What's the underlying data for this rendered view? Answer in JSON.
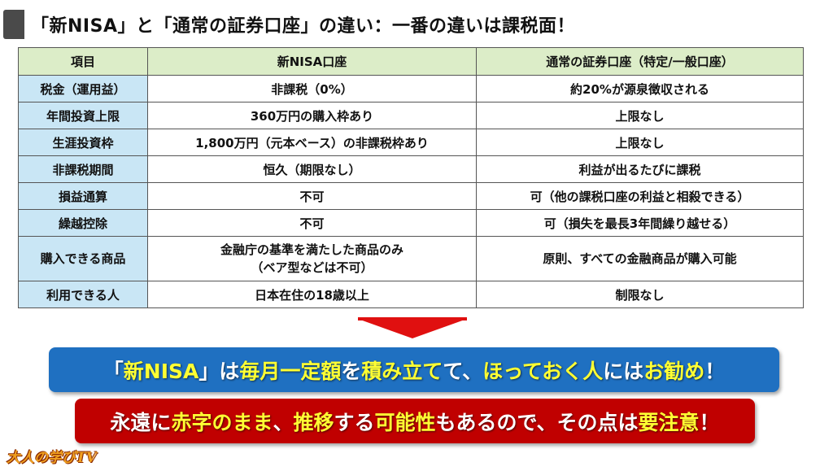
{
  "title": "「新NISA」と「通常の証券口座」の違い：一番の違いは課税面！",
  "table": {
    "headers": [
      "項目",
      "新NISA口座",
      "通常の証券口座（特定/一般口座）"
    ],
    "rows": [
      [
        "税金（運用益）",
        "非課税（0%）",
        "約20%が源泉徴収される"
      ],
      [
        "年間投資上限",
        "360万円の購入枠あり",
        "上限なし"
      ],
      [
        "生涯投資枠",
        "1,800万円（元本ベース）の非課税枠あり",
        "上限なし"
      ],
      [
        "非課税期間",
        "恒久（期限なし）",
        "利益が出るたびに課税"
      ],
      [
        "損益通算",
        "不可",
        "可（他の課税口座の利益と相殺できる）"
      ],
      [
        "繰越控除",
        "不可",
        "可（損失を最長3年間繰り越せる）"
      ],
      [
        "購入できる商品",
        "金融庁の基準を満たした商品のみ",
        "原則、すべての金融商品が購入可能"
      ],
      [
        "利用できる人",
        "日本在住の18歳以上",
        "制限なし"
      ]
    ],
    "row7_note": "（ベア型などは不可）"
  },
  "banner_blue": [
    {
      "text": "「",
      "hl": false
    },
    {
      "text": "新NISA",
      "hl": true
    },
    {
      "text": "」は",
      "hl": false
    },
    {
      "text": "毎月一定額",
      "hl": true
    },
    {
      "text": "を",
      "hl": false
    },
    {
      "text": "積み立て",
      "hl": true
    },
    {
      "text": "て、",
      "hl": false
    },
    {
      "text": "ほっておく人",
      "hl": true
    },
    {
      "text": "には",
      "hl": false
    },
    {
      "text": "お勧め",
      "hl": true
    },
    {
      "text": "！",
      "hl": false
    }
  ],
  "banner_red": [
    {
      "text": "永遠に",
      "hl": false
    },
    {
      "text": "赤字のまま",
      "hl": true
    },
    {
      "text": "、",
      "hl": false
    },
    {
      "text": "推移",
      "hl": true
    },
    {
      "text": "する",
      "hl": false
    },
    {
      "text": "可能性",
      "hl": true
    },
    {
      "text": "もあるので、その点は",
      "hl": false
    },
    {
      "text": "要注意",
      "hl": true
    },
    {
      "text": "！",
      "hl": false
    }
  ],
  "logo": "大人の学びTV",
  "colors": {
    "header_bg": "#dcedc8",
    "item_bg": "#c9e6f5",
    "blue": "#1f70c1",
    "red": "#c00000",
    "highlight": "#ffff33",
    "arrow": "#e01010"
  }
}
